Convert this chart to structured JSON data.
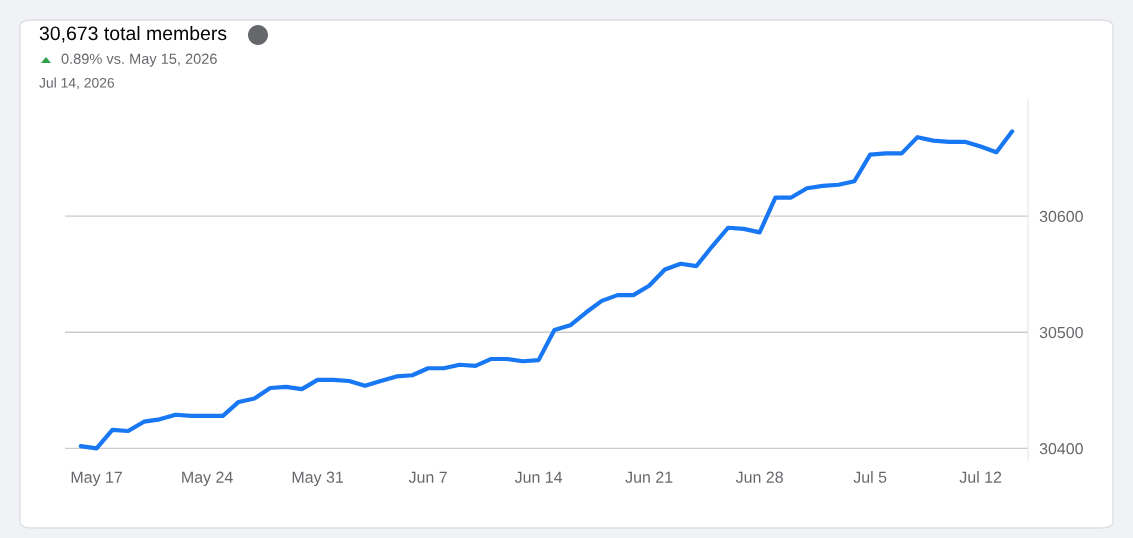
{
  "chart_data": {
    "type": "line",
    "title": "30,673 total members",
    "subtitle": "0.89% vs. May 15, 2026",
    "annotations": [
      "Jul 14, 2026"
    ],
    "x": [
      "2026-05-16",
      "2026-05-17",
      "2026-05-18",
      "2026-05-19",
      "2026-05-20",
      "2026-05-21",
      "2026-05-22",
      "2026-05-23",
      "2026-05-24",
      "2026-05-25",
      "2026-05-26",
      "2026-05-27",
      "2026-05-28",
      "2026-05-29",
      "2026-05-30",
      "2026-05-31",
      "2026-06-01",
      "2026-06-02",
      "2026-06-03",
      "2026-06-04",
      "2026-06-05",
      "2026-06-06",
      "2026-06-07",
      "2026-06-08",
      "2026-06-09",
      "2026-06-10",
      "2026-06-11",
      "2026-06-12",
      "2026-06-13",
      "2026-06-14",
      "2026-06-15",
      "2026-06-16",
      "2026-06-17",
      "2026-06-18",
      "2026-06-19",
      "2026-06-20",
      "2026-06-21",
      "2026-06-22",
      "2026-06-23",
      "2026-06-24",
      "2026-06-25",
      "2026-06-26",
      "2026-06-27",
      "2026-06-28",
      "2026-06-29",
      "2026-06-30",
      "2026-07-01",
      "2026-07-02",
      "2026-07-03",
      "2026-07-04",
      "2026-07-05",
      "2026-07-06",
      "2026-07-07",
      "2026-07-08",
      "2026-07-09",
      "2026-07-10",
      "2026-07-11",
      "2026-07-12",
      "2026-07-13",
      "2026-07-14"
    ],
    "series": [
      {
        "color": "#1877f2",
        "values": [
          30402,
          30400,
          30416,
          30415,
          30423,
          30425,
          30429,
          30428,
          30428,
          30428,
          30440,
          30443,
          30452,
          30453,
          30451,
          30459,
          30459,
          30458,
          30454,
          30458,
          30462,
          30463,
          30469,
          30469,
          30472,
          30471,
          30477,
          30477,
          30475,
          30476,
          30502,
          30506,
          30517,
          30527,
          30532,
          30532,
          30540,
          30554,
          30559,
          30557,
          30574,
          30590,
          30589,
          30586,
          30616,
          30616,
          30624,
          30626,
          30627,
          30630,
          30653,
          30654,
          30654,
          30668,
          30665,
          30664,
          30664,
          30660,
          30655,
          30673
        ]
      }
    ],
    "xlim": [
      "2026-05-15",
      "2026-07-15"
    ],
    "xticks": [
      {
        "value": "2026-05-17",
        "label": "May 17"
      },
      {
        "value": "2026-05-24",
        "label": "May 24"
      },
      {
        "value": "2026-05-31",
        "label": "May 31"
      },
      {
        "value": "2026-06-07",
        "label": "Jun 7"
      },
      {
        "value": "2026-06-14",
        "label": "Jun 14"
      },
      {
        "value": "2026-06-21",
        "label": "Jun 21"
      },
      {
        "value": "2026-06-28",
        "label": "Jun 28"
      },
      {
        "value": "2026-07-05",
        "label": "Jul 5"
      },
      {
        "value": "2026-07-12",
        "label": "Jul 12"
      }
    ],
    "ylim": [
      30390,
      30700
    ],
    "yticks": [
      30400,
      30500,
      30600
    ],
    "grid": "y",
    "legend": false,
    "marker": "none",
    "line_style": "solid"
  }
}
